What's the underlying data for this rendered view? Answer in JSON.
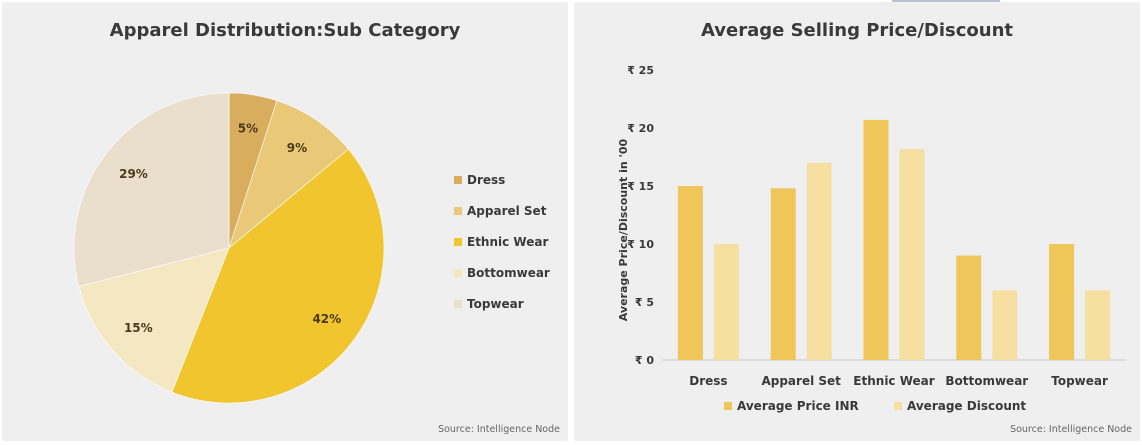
{
  "chart_data": [
    {
      "type": "pie",
      "title": "Apparel Distribution:Sub Category",
      "source": "Source: Intelligence Node",
      "legend_position": "right",
      "slices": [
        {
          "name": "Dress",
          "value": 5,
          "label": "5%",
          "color": "#d9ad5e"
        },
        {
          "name": "Apparel Set",
          "value": 9,
          "label": "9%",
          "color": "#e9c978"
        },
        {
          "name": "Ethnic Wear",
          "value": 42,
          "label": "42%",
          "color": "#f0c52e"
        },
        {
          "name": "Bottomwear",
          "value": 15,
          "label": "15%",
          "color": "#f4e8c2"
        },
        {
          "name": "Topwear",
          "value": 29,
          "label": "29%",
          "color": "#e9dfcc"
        }
      ]
    },
    {
      "type": "bar",
      "title": "Average Selling Price/Discount",
      "source": "Source: Intelligence Node",
      "ylabel": "Average Price/Discount in '00",
      "ylim": [
        0,
        25
      ],
      "yticks": [
        0,
        5,
        10,
        15,
        20,
        25
      ],
      "ytick_labels": [
        "₹ 0",
        "₹ 5",
        "₹ 10",
        "₹ 15",
        "₹ 20",
        "₹ 25"
      ],
      "grid": false,
      "legend_position": "bottom",
      "categories": [
        "Dress",
        "Apparel Set",
        "Ethnic Wear",
        "Bottomwear",
        "Topwear"
      ],
      "series": [
        {
          "name": "Average Price INR",
          "color": "#f0c65a",
          "values": [
            15,
            14.8,
            20.7,
            9,
            10
          ]
        },
        {
          "name": "Average Discount",
          "color": "#f7dfa2",
          "values": [
            10,
            17,
            18.2,
            6,
            6
          ]
        }
      ]
    }
  ]
}
